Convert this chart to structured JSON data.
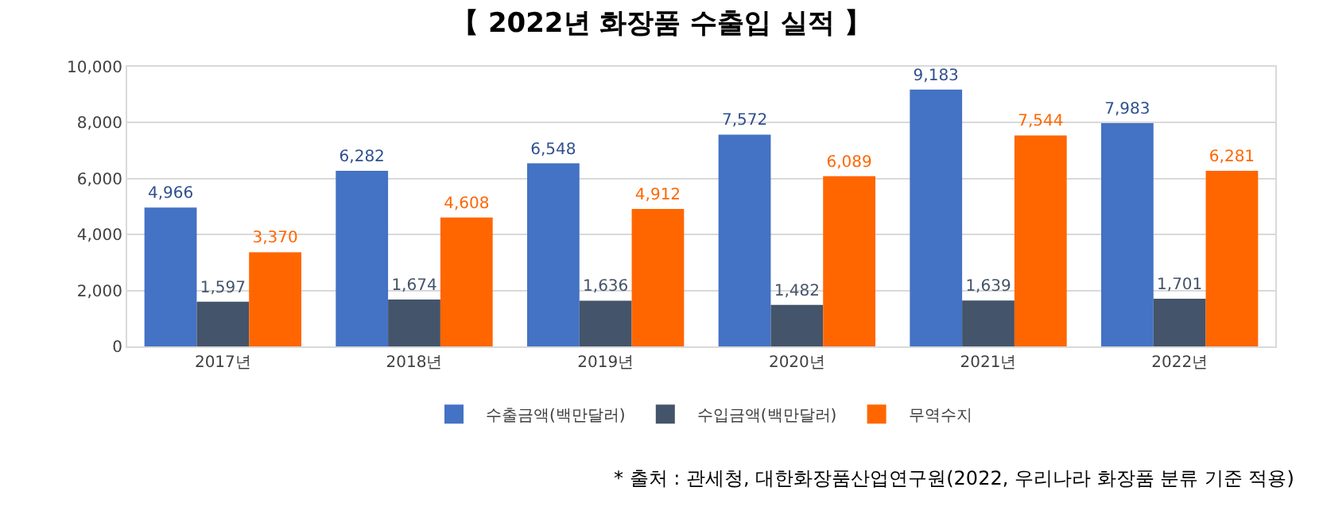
{
  "chart_data": {
    "type": "bar",
    "title": "【 2022년 화장품 수출입 실적 】",
    "categories": [
      "2017년",
      "2018년",
      "2019년",
      "2020년",
      "2021년",
      "2022년"
    ],
    "series": [
      {
        "name": "수출금액(백만달러)",
        "color": "#4472c4",
        "values": [
          4966,
          6282,
          6548,
          7572,
          9183,
          7983
        ],
        "value_labels": [
          "4,966",
          "6,282",
          "6,548",
          "7,572",
          "9,183",
          "7,983"
        ]
      },
      {
        "name": "수입금액(백만달러)",
        "color": "#44546a",
        "values": [
          1597,
          1674,
          1636,
          1482,
          1639,
          1701
        ],
        "value_labels": [
          "1,597",
          "1,674",
          "1,636",
          "1,482",
          "1,639",
          "1,701"
        ]
      },
      {
        "name": "무역수지",
        "color": "#ff6600",
        "values": [
          3370,
          4608,
          4912,
          6089,
          7544,
          6281
        ],
        "value_labels": [
          "3,370",
          "4,608",
          "4,912",
          "6,089",
          "7,544",
          "6,281"
        ]
      }
    ],
    "ylim": [
      0,
      10000
    ],
    "yticks": [
      {
        "value": 0,
        "label": "0"
      },
      {
        "value": 2000,
        "label": "2,000"
      },
      {
        "value": 4000,
        "label": "4,000"
      },
      {
        "value": 6000,
        "label": "6,000"
      },
      {
        "value": 8000,
        "label": "8,000"
      },
      {
        "value": 10000,
        "label": "10,000"
      }
    ],
    "grid": "y",
    "legend": "bottom",
    "annotations": [
      "* 출처 : 관세청, 대한화장품산업연구원(2022, 우리나라 화장품 분류 기준 적용)"
    ]
  }
}
